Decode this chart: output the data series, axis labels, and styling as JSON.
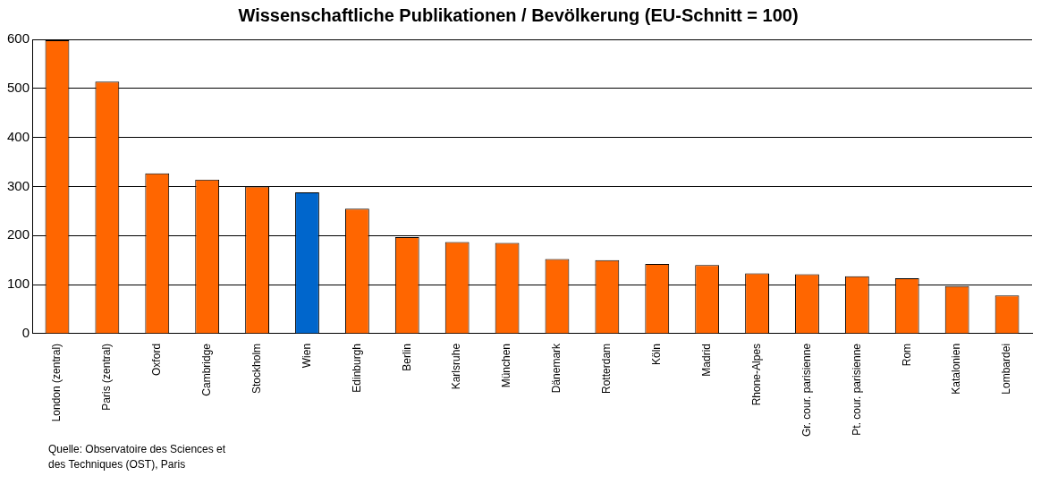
{
  "chart_data": {
    "type": "bar",
    "title": "Wissenschaftliche Publikationen / Bevölkerung (EU-Schnitt = 100)",
    "categories": [
      "London (zentral)",
      "Paris (zentral)",
      "Oxford",
      "Cambridge",
      "Stockholm",
      "Wien",
      "Edinburgh",
      "Berlin",
      "Karlsruhe",
      "München",
      "Dänemark",
      "Rotterdam",
      "Köln",
      "Madrid",
      "Rhone-Alpes",
      "Gr. cour. parisienne",
      "Pt. cour. parisienne",
      "Rom",
      "Katalonien",
      "Lombardei"
    ],
    "values": [
      598,
      514,
      327,
      314,
      300,
      288,
      255,
      197,
      187,
      185,
      152,
      150,
      142,
      140,
      123,
      121,
      117,
      113,
      97,
      78
    ],
    "colors": [
      "#ff6600",
      "#ff6600",
      "#ff6600",
      "#ff6600",
      "#ff6600",
      "#0066cc",
      "#ff6600",
      "#ff6600",
      "#ff6600",
      "#ff6600",
      "#ff6600",
      "#ff6600",
      "#ff6600",
      "#ff6600",
      "#ff6600",
      "#ff6600",
      "#ff6600",
      "#ff6600",
      "#ff6600",
      "#ff6600"
    ],
    "ylim": [
      0,
      600
    ],
    "yticks": [
      0,
      100,
      200,
      300,
      400,
      500,
      600
    ],
    "grid": "y",
    "legend": false,
    "annotations": [
      "Quelle: Observatoire des Sciences et des Techniques (OST), Paris"
    ]
  }
}
